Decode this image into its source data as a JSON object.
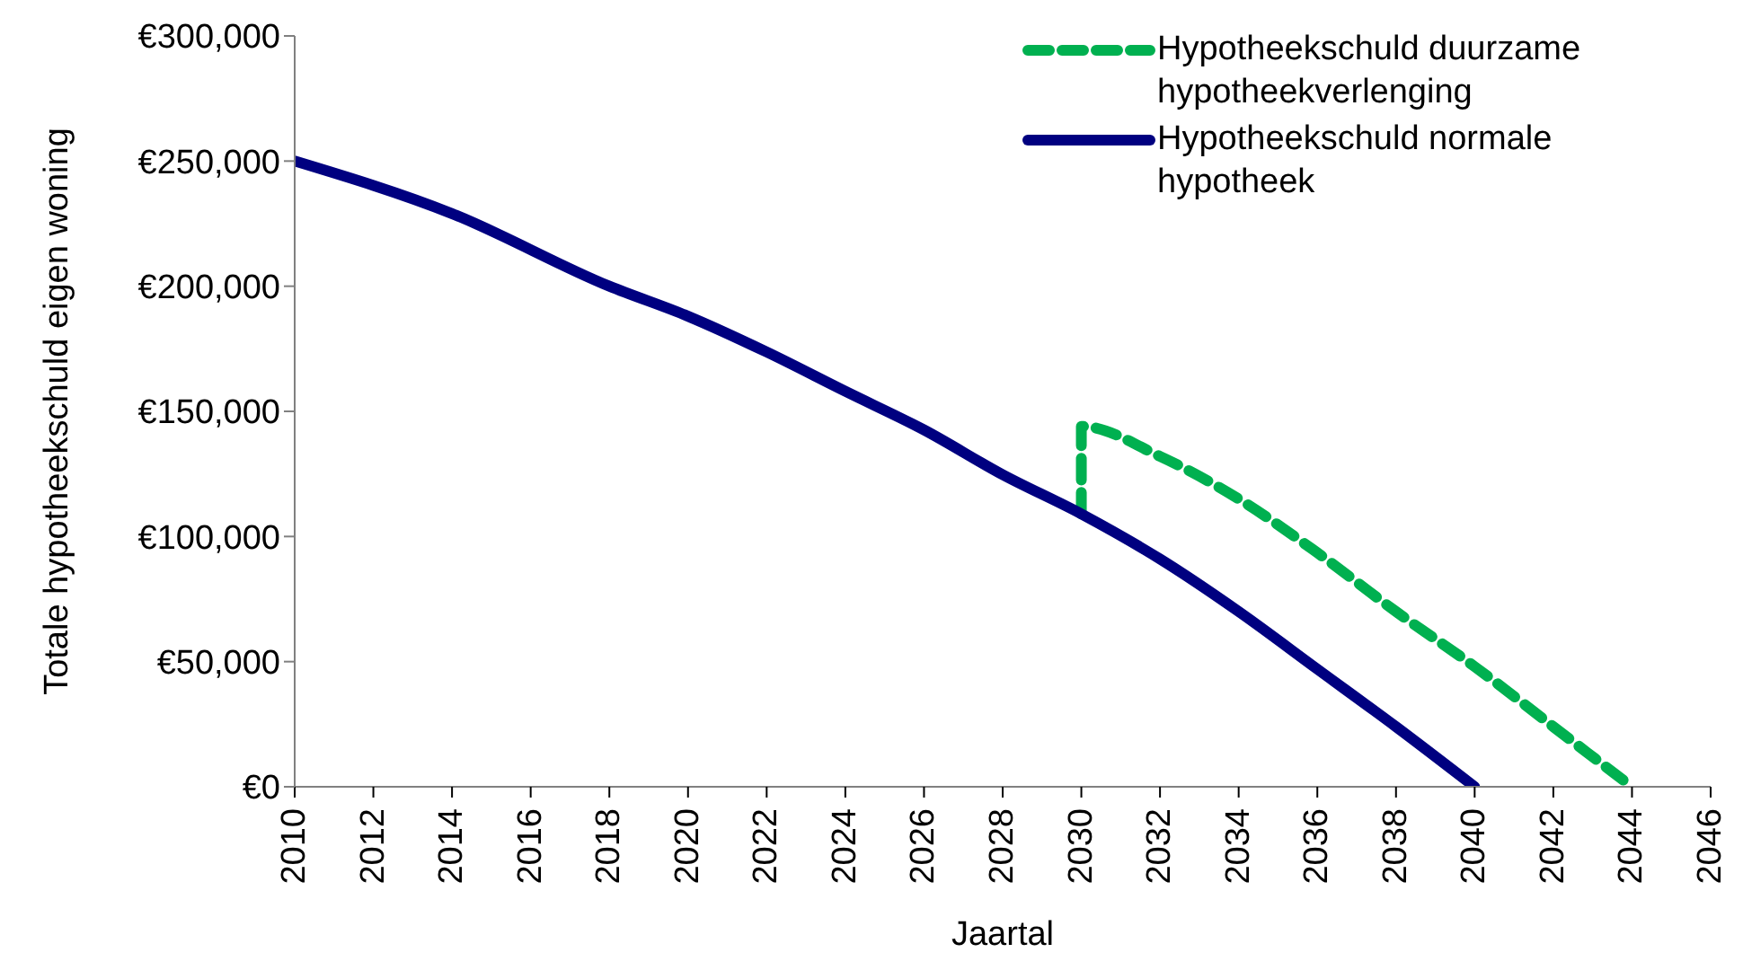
{
  "chart_data": {
    "type": "line",
    "xlabel": "Jaartal",
    "ylabel": "Totale hypotheekschuld eigen woning",
    "xlim": [
      2010,
      2046
    ],
    "xticks": [
      2010,
      2012,
      2014,
      2016,
      2018,
      2020,
      2022,
      2024,
      2026,
      2028,
      2030,
      2032,
      2034,
      2036,
      2038,
      2040,
      2042,
      2044,
      2046
    ],
    "ylim": [
      0,
      300000
    ],
    "yticks": [
      {
        "value": 0,
        "label": "€0"
      },
      {
        "value": 50000,
        "label": "€50,000"
      },
      {
        "value": 100000,
        "label": "€100,000"
      },
      {
        "value": 150000,
        "label": "€150,000"
      },
      {
        "value": 200000,
        "label": "€200,000"
      },
      {
        "value": 250000,
        "label": "€250,000"
      },
      {
        "value": 300000,
        "label": "€300,000"
      }
    ],
    "legend": "top right",
    "marker": "none",
    "series": [
      {
        "name": "Hypotheekschuld duurzame hypotheekverlenging",
        "color": "#00b050",
        "line_style": "dashed",
        "x": [
          2030,
          2030,
          2032,
          2034,
          2036,
          2038,
          2040,
          2042,
          2044
        ],
        "values": [
          109000,
          144000,
          132000,
          115000,
          93500,
          70000,
          48000,
          24000,
          0
        ]
      },
      {
        "name": "Hypotheekschuld normale hypotheek",
        "color": "#000080",
        "line_style": "solid",
        "x": [
          2010,
          2014,
          2018,
          2020,
          2022,
          2024,
          2026,
          2028,
          2030,
          2032,
          2034,
          2036,
          2038,
          2040
        ],
        "values": [
          250000,
          229000,
          200000,
          188000,
          173700,
          158000,
          142600,
          124700,
          109000,
          91000,
          70000,
          47000,
          24000,
          0
        ]
      }
    ]
  }
}
